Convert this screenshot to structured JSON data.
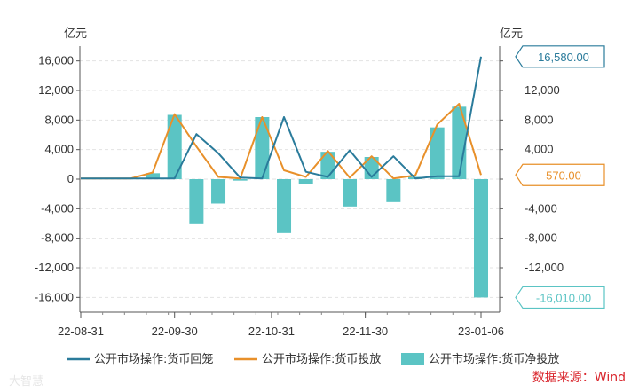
{
  "chart_data": {
    "type": "bar+line",
    "unit_left": "亿元",
    "unit_right": "亿元",
    "ylim": [
      -18000,
      18000
    ],
    "yticks": [
      16000,
      12000,
      8000,
      4000,
      0,
      -4000,
      -8000,
      -12000,
      -16000
    ],
    "ytick_labels": [
      "16,000",
      "12,000",
      "8,000",
      "4,000",
      "0",
      "-4,000",
      "-8,000",
      "-12,000",
      "-16,000"
    ],
    "ytick_labels_right": [
      "16,000",
      "12,000",
      "8,000",
      "4,000",
      "0",
      "-4,000",
      "-8,000",
      "-12,000",
      "-16,000"
    ],
    "x_tick_labels": [
      "22-08-31",
      "22-09-30",
      "22-10-31",
      "22-11-30",
      "23-01-06"
    ],
    "grid": true,
    "legend_position": "bottom",
    "series": [
      {
        "name": "公开市场操作:货币回笼",
        "type": "line",
        "color": "#2a7b9b",
        "points": [
          [
            "2022-08-31",
            100
          ],
          [
            "2022-09-09",
            100
          ],
          [
            "2022-09-16",
            100
          ],
          [
            "2022-09-23",
            100
          ],
          [
            "2022-09-30",
            100
          ],
          [
            "2022-10-07",
            6100
          ],
          [
            "2022-10-14",
            3500
          ],
          [
            "2022-10-21",
            200
          ],
          [
            "2022-10-28",
            100
          ],
          [
            "2022-11-04",
            8400
          ],
          [
            "2022-11-11",
            1000
          ],
          [
            "2022-11-18",
            300
          ],
          [
            "2022-11-25",
            3900
          ],
          [
            "2022-12-02",
            300
          ],
          [
            "2022-12-09",
            3100
          ],
          [
            "2022-12-16",
            100
          ],
          [
            "2022-12-23",
            400
          ],
          [
            "2022-12-30",
            400
          ],
          [
            "2023-01-06",
            16580
          ]
        ]
      },
      {
        "name": "公开市场操作:货币投放",
        "type": "line",
        "color": "#e8902a",
        "points": [
          [
            "2022-08-31",
            100
          ],
          [
            "2022-09-09",
            100
          ],
          [
            "2022-09-16",
            100
          ],
          [
            "2022-09-23",
            900
          ],
          [
            "2022-09-30",
            8800
          ],
          [
            "2022-10-07",
            4400
          ],
          [
            "2022-10-14",
            300
          ],
          [
            "2022-10-21",
            100
          ],
          [
            "2022-10-28",
            8400
          ],
          [
            "2022-11-04",
            1200
          ],
          [
            "2022-11-11",
            300
          ],
          [
            "2022-11-18",
            3800
          ],
          [
            "2022-11-25",
            200
          ],
          [
            "2022-12-02",
            3100
          ],
          [
            "2022-12-09",
            100
          ],
          [
            "2022-12-16",
            500
          ],
          [
            "2022-12-23",
            7400
          ],
          [
            "2022-12-30",
            10200
          ],
          [
            "2023-01-06",
            570
          ]
        ]
      },
      {
        "name": "公开市场操作:货币净投放",
        "type": "bar",
        "color": "#5bc4c4",
        "points": [
          [
            "2022-09-23",
            800
          ],
          [
            "2022-09-30",
            8700
          ],
          [
            "2022-10-07",
            -6100
          ],
          [
            "2022-10-14",
            -3300
          ],
          [
            "2022-10-21",
            -200
          ],
          [
            "2022-10-28",
            8400
          ],
          [
            "2022-11-04",
            -7300
          ],
          [
            "2022-11-11",
            -700
          ],
          [
            "2022-11-18",
            3700
          ],
          [
            "2022-11-25",
            -3700
          ],
          [
            "2022-12-02",
            3000
          ],
          [
            "2022-12-09",
            -3100
          ],
          [
            "2022-12-16",
            300
          ],
          [
            "2022-12-23",
            7000
          ],
          [
            "2022-12-30",
            9800
          ],
          [
            "2023-01-06",
            -16010
          ]
        ]
      }
    ],
    "callouts": [
      {
        "series": 0,
        "label": "16,580.00",
        "value": 16580,
        "color": "#2a7b9b"
      },
      {
        "series": 1,
        "label": "570.00",
        "value": 570,
        "color": "#e8902a"
      },
      {
        "series": 2,
        "label": "-16,010.00",
        "value": -16010,
        "color": "#5bc4c4"
      }
    ],
    "source": "数据来源：Wind",
    "watermark": "大智慧"
  }
}
